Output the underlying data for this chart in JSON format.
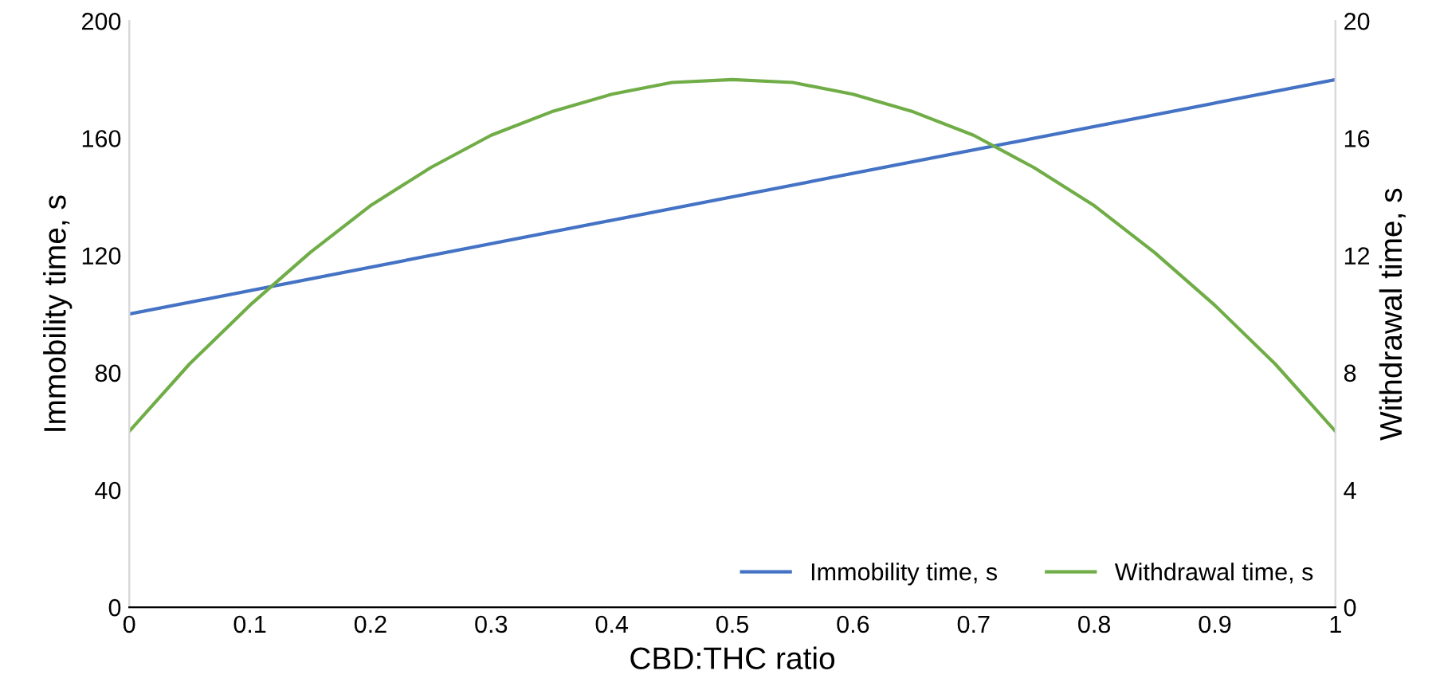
{
  "chart_data": {
    "type": "line",
    "xlabel": "CBD:THC ratio",
    "ylabel": "Immobility time, s",
    "y2label": "Withdrawal time, s",
    "xlim": [
      0,
      1
    ],
    "xticks": [
      0,
      0.1,
      0.2,
      0.3,
      0.4,
      0.5,
      0.6,
      0.7,
      0.8,
      0.9,
      1
    ],
    "ylim": [
      0,
      200
    ],
    "yticks": [
      0,
      40,
      80,
      120,
      160,
      200
    ],
    "y2lim": [
      0,
      20
    ],
    "y2ticks": [
      0,
      4,
      8,
      12,
      16,
      20
    ],
    "grid": false,
    "legend": "bottom right",
    "marker": "none",
    "line_style": "solid",
    "series": [
      {
        "name": "Immobility time, s",
        "color": "#4472c4",
        "x": [
          0,
          1
        ],
        "values": [
          100,
          180
        ]
      },
      {
        "name": "Withdrawal time, s",
        "color": "#70ad47",
        "axis": "y2",
        "x": [
          0,
          0.05,
          0.1,
          0.15,
          0.2,
          0.25,
          0.3,
          0.35,
          0.4,
          0.45,
          0.5,
          0.55,
          0.6,
          0.65,
          0.7,
          0.75,
          0.8,
          0.85,
          0.9,
          0.95,
          1
        ],
        "values": [
          6,
          8.3,
          10.3,
          12.1,
          13.7,
          15,
          16.1,
          16.9,
          17.5,
          17.9,
          18,
          17.9,
          17.5,
          16.9,
          16.1,
          15,
          13.7,
          12.1,
          10.3,
          8.3,
          6
        ]
      }
    ]
  }
}
